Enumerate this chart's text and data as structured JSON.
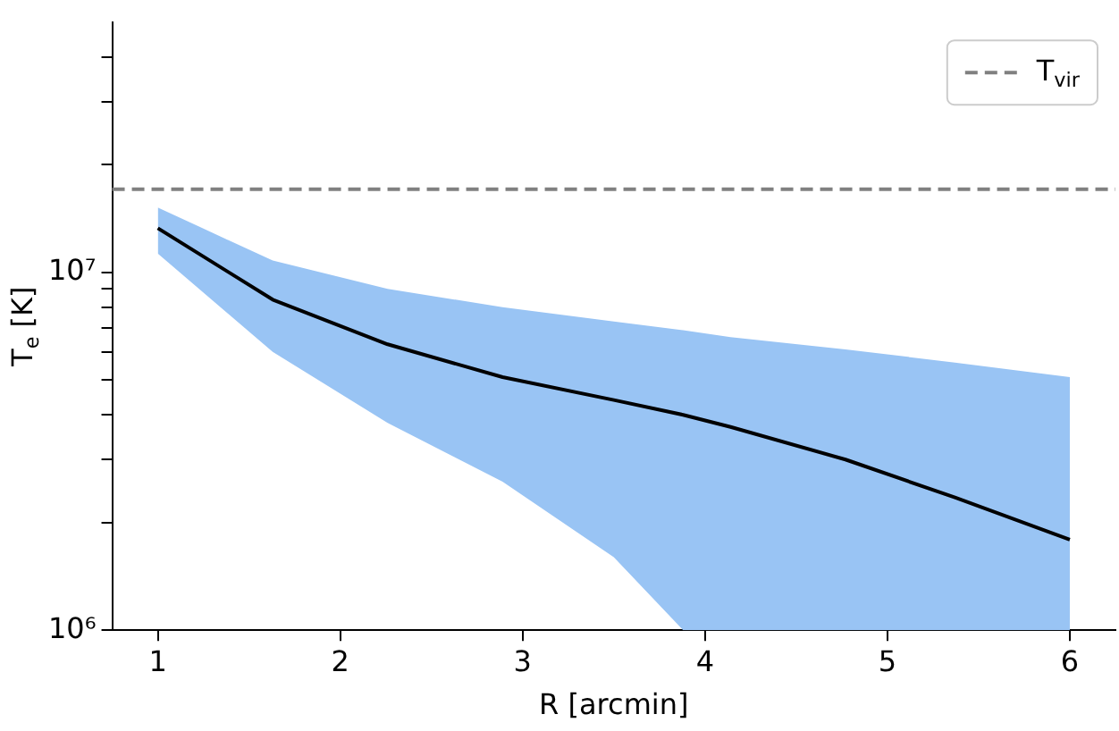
{
  "chart_data": {
    "type": "line",
    "xlabel": "R [arcmin]",
    "ylabel": "T$_{e}$ [K]",
    "log": "y",
    "grid": false,
    "legend": "top right",
    "marker": "none",
    "line_style": "solid",
    "xlim": [
      0.75,
      6.25
    ],
    "xticks": [
      1,
      2,
      3,
      4,
      5,
      6
    ],
    "ylim": [
      1000000,
      50000000
    ],
    "yticks": [
      {
        "value": 1000000,
        "label": "10⁶"
      },
      {
        "value": 2000000,
        "label": null
      },
      {
        "value": 3000000,
        "label": null
      },
      {
        "value": 4000000,
        "label": null
      },
      {
        "value": 5000000,
        "label": null
      },
      {
        "value": 6000000,
        "label": null
      },
      {
        "value": 7000000,
        "label": null
      },
      {
        "value": 8000000,
        "label": null
      },
      {
        "value": 9000000,
        "label": null
      },
      {
        "value": 10000000,
        "label": "10⁷"
      },
      {
        "value": 20000000,
        "label": null
      },
      {
        "value": 30000000,
        "label": null
      },
      {
        "value": 40000000,
        "label": null
      }
    ],
    "x": [
      1,
      1.63,
      2.26,
      2.89,
      3.5,
      3.88,
      4.14,
      4.77,
      5.37,
      6
    ],
    "series": [
      {
        "color": "#000000",
        "values": [
          13300000,
          8400000,
          6300000,
          5100000,
          4400000,
          4000000,
          3700000,
          3000000,
          2350000,
          1790000
        ],
        "lower": [
          11300000,
          6000000,
          3800000,
          2600000,
          1600000,
          1000000,
          1000000,
          1000000,
          1000000,
          1000000
        ],
        "upper": [
          15200000,
          10800000,
          9000000,
          8000000,
          7300000,
          6900000,
          6600000,
          6100000,
          5600000,
          5100000
        ]
      }
    ],
    "ref_lines": [
      {
        "axis": "y",
        "value": 17100000,
        "label": "T$_{vir}$",
        "color": "#808080",
        "line_style": "dashed"
      }
    ]
  }
}
